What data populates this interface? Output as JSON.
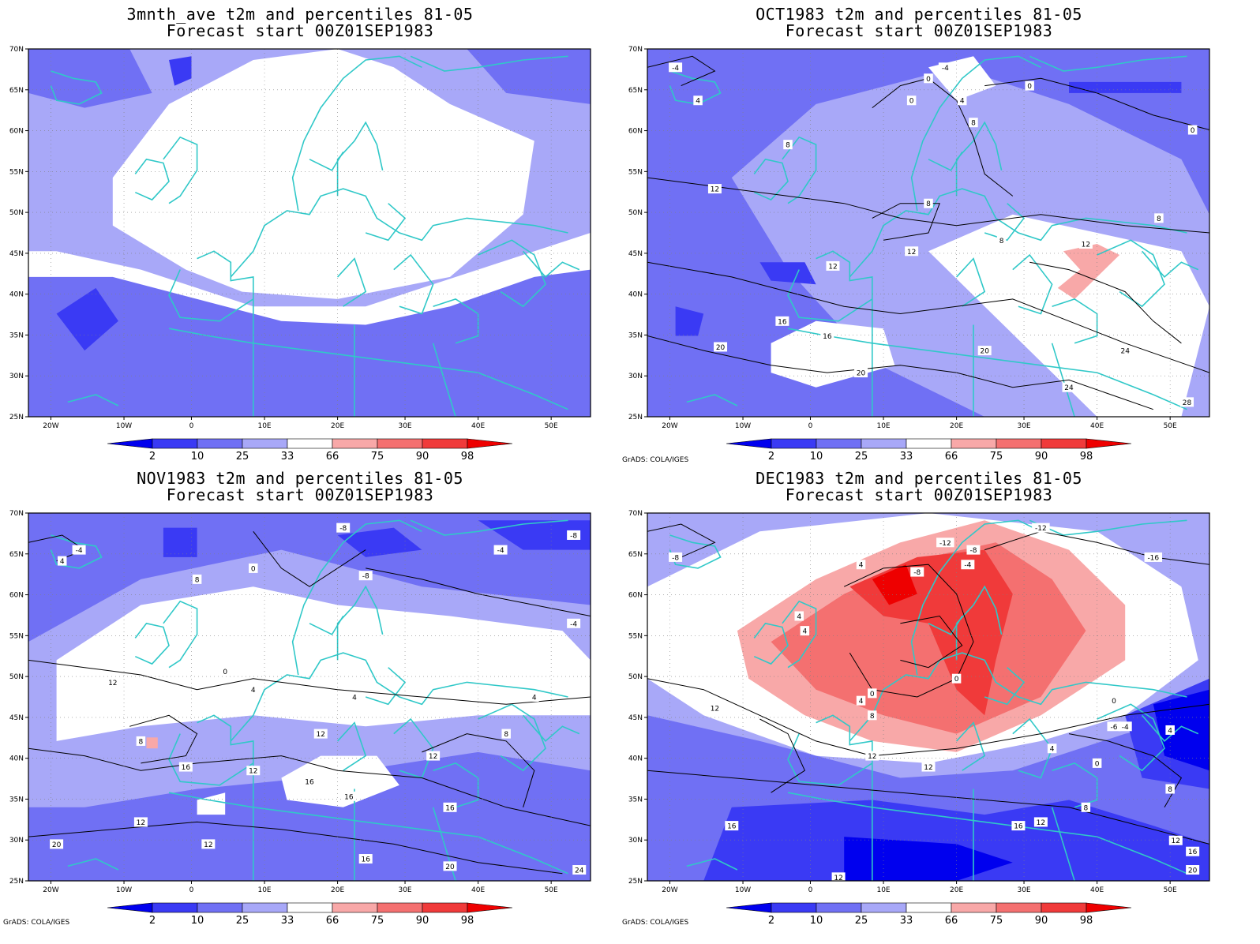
{
  "colors": {
    "p2": "#0000ee",
    "p10": "#3a3af4",
    "p25": "#7070f4",
    "p33": "#a8a8f8",
    "neutral": "#ffffff",
    "p66": "#f8a8a8",
    "p75": "#f47070",
    "p90": "#f03a3a",
    "p98": "#ee0000",
    "coast": "#30c8c8",
    "contour": "#000000"
  },
  "colorbar": {
    "labels": [
      "2",
      "10",
      "25",
      "33",
      "66",
      "75",
      "90",
      "98"
    ]
  },
  "axes": {
    "lat_labels": [
      "70N",
      "65N",
      "60N",
      "55N",
      "50N",
      "45N",
      "40N",
      "35N",
      "30N",
      "25N"
    ],
    "lon_labels": [
      "20W",
      "10W",
      "0",
      "10E",
      "20E",
      "30E",
      "40E",
      "50E"
    ]
  },
  "credit": "GrADS: COLA/IGES",
  "panels": [
    {
      "title": "3mnth_ave t2m and percentiles 81-05",
      "subtitle": "Forecast start 00Z01SEP1983",
      "show_credit": false,
      "labels": []
    },
    {
      "title": "OCT1983 t2m and percentiles 81-05",
      "subtitle": "Forecast start 00Z01SEP1983",
      "show_credit": true,
      "labels": [
        "-4",
        "0",
        "4",
        "8",
        "12",
        "16",
        "20",
        "24",
        "28"
      ]
    },
    {
      "title": "NOV1983 t2m and percentiles 81-05",
      "subtitle": "Forecast start 00Z01SEP1983",
      "show_credit": true,
      "labels": [
        "-8",
        "-4",
        "0",
        "4",
        "8",
        "12",
        "16",
        "20",
        "24"
      ]
    },
    {
      "title": "DEC1983 t2m and percentiles 81-05",
      "subtitle": "Forecast start 00Z01SEP1983",
      "show_credit": true,
      "labels": [
        "-16",
        "-12",
        "-8",
        "-6",
        "-4",
        "0",
        "4",
        "8",
        "12",
        "16",
        "20"
      ]
    }
  ]
}
